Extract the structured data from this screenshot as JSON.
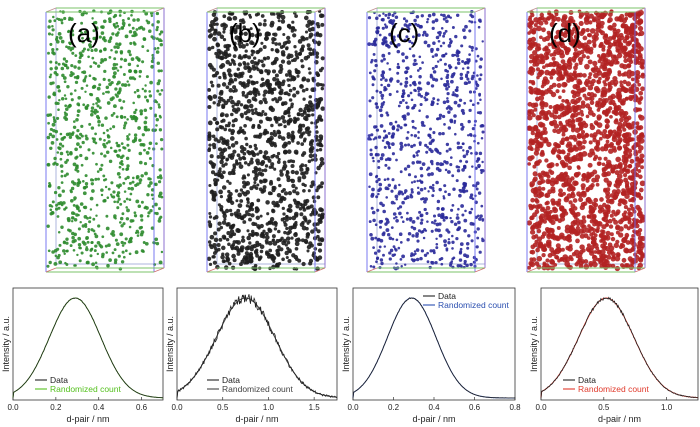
{
  "figure": {
    "panel_labels": [
      "(a)",
      "(b)",
      "(c)",
      "(d)"
    ]
  },
  "volumes": [
    {
      "label": "(a)",
      "dot_color": "#2e8b2e",
      "point_count": 900,
      "dot_radius": 1.6
    },
    {
      "label": "(b)",
      "dot_color": "#1e1e1e",
      "point_count": 1300,
      "dot_radius": 2.0
    },
    {
      "label": "(c)",
      "dot_color": "#2a2a9a",
      "point_count": 900,
      "dot_radius": 1.6
    },
    {
      "label": "(d)",
      "dot_color": "#b22222",
      "point_count": 1700,
      "dot_radius": 2.4
    }
  ],
  "chart_data": [
    {
      "type": "line",
      "xlabel": "d-pair / nm",
      "ylabel": "Intensity / a.u.",
      "xlim": [
        0.0,
        0.7
      ],
      "xticks": [
        "0.0",
        "0.2",
        "0.4",
        "0.6"
      ],
      "legend_position": "bottom-left",
      "series": [
        {
          "name": "Data",
          "color": "#222222",
          "peak_x": 0.29,
          "width": 0.12,
          "noise": 0.004
        },
        {
          "name": "Randomized count",
          "color": "#55c11f",
          "peak_x": 0.29,
          "width": 0.12,
          "noise": 0
        }
      ]
    },
    {
      "type": "line",
      "xlabel": "d-pair / nm",
      "ylabel": "Intensity / a.u.",
      "xlim": [
        0.0,
        1.75
      ],
      "xticks": [
        "0.0",
        "0.5",
        "1.0",
        "1.5"
      ],
      "legend_position": "bottom-center",
      "series": [
        {
          "name": "Data",
          "color": "#222222",
          "peak_x": 0.75,
          "width": 0.32,
          "noise": 0.035
        },
        {
          "name": "Randomized count",
          "color": "#444444",
          "peak_x": 0.75,
          "width": 0.32,
          "noise": 0
        }
      ]
    },
    {
      "type": "line",
      "xlabel": "d-pair / nm",
      "ylabel": "Intensity / a.u.",
      "xlim": [
        0.0,
        0.8
      ],
      "xticks": [
        "0.0",
        "0.2",
        "0.4",
        "0.6",
        "0.8"
      ],
      "legend_position": "top-right",
      "series": [
        {
          "name": "Data",
          "color": "#222222",
          "peak_x": 0.29,
          "width": 0.12,
          "noise": 0.004
        },
        {
          "name": "Randomized count",
          "color": "#2b4fb0",
          "peak_x": 0.29,
          "width": 0.12,
          "noise": 0
        }
      ]
    },
    {
      "type": "line",
      "xlabel": "d-pair / nm",
      "ylabel": "Intensity / a.u.",
      "xlim": [
        0.0,
        1.25
      ],
      "xticks": [
        "0.0",
        "0.5",
        "1.0"
      ],
      "legend_position": "bottom-left",
      "series": [
        {
          "name": "Data",
          "color": "#222222",
          "peak_x": 0.52,
          "width": 0.22,
          "noise": 0.012
        },
        {
          "name": "Randomized count",
          "color": "#e03a2c",
          "peak_x": 0.52,
          "width": 0.22,
          "noise": 0
        }
      ]
    }
  ]
}
